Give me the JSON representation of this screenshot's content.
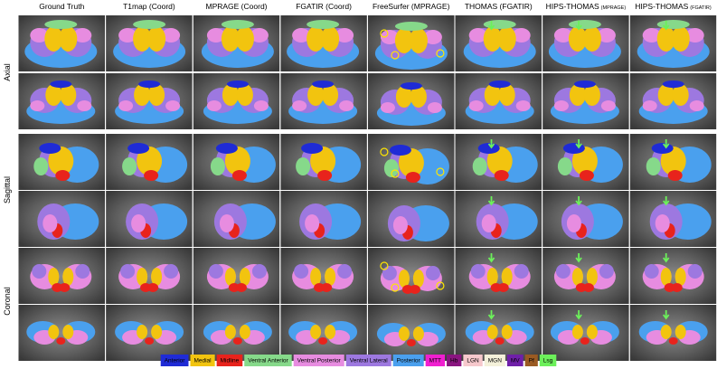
{
  "figure": {
    "columns": [
      {
        "main": "Ground Truth"
      },
      {
        "main": "T1map (Coord)"
      },
      {
        "main": "MPRAGE (Coord)"
      },
      {
        "main": "FGATIR (Coord)"
      },
      {
        "main": "FreeSurfer (MPRAGE)"
      },
      {
        "main": "THOMAS (FGATIR)"
      },
      {
        "main": "HIPS-THOMAS",
        "sub": "(MPRAGE)"
      },
      {
        "main": "HIPS-THOMAS",
        "sub": "(FGATIR)"
      }
    ],
    "views": [
      "Axial",
      "Sagittal",
      "Coronal"
    ],
    "legend": [
      {
        "label": "Anterior",
        "color": "#1f2bd6"
      },
      {
        "label": "Medial",
        "color": "#f2c40f"
      },
      {
        "label": "Midline",
        "color": "#e8231c"
      },
      {
        "label": "Ventral Anterior",
        "color": "#86d98a"
      },
      {
        "label": "Ventral Posterior",
        "color": "#e78ce0"
      },
      {
        "label": "Ventral Lateral",
        "color": "#9d78e0"
      },
      {
        "label": "Posterior",
        "color": "#4aa0ee"
      },
      {
        "label": "MTT",
        "color": "#f01fd0"
      },
      {
        "label": "Hb",
        "color": "#8a1580"
      },
      {
        "label": "LGN",
        "color": "#f6c8cc"
      },
      {
        "label": "MGN",
        "color": "#f4f1da"
      },
      {
        "label": "MV",
        "color": "#6f1fa8"
      },
      {
        "label": "Pf",
        "color": "#9a5a22"
      },
      {
        "label": "Lsg",
        "color": "#6cf05a"
      }
    ]
  }
}
